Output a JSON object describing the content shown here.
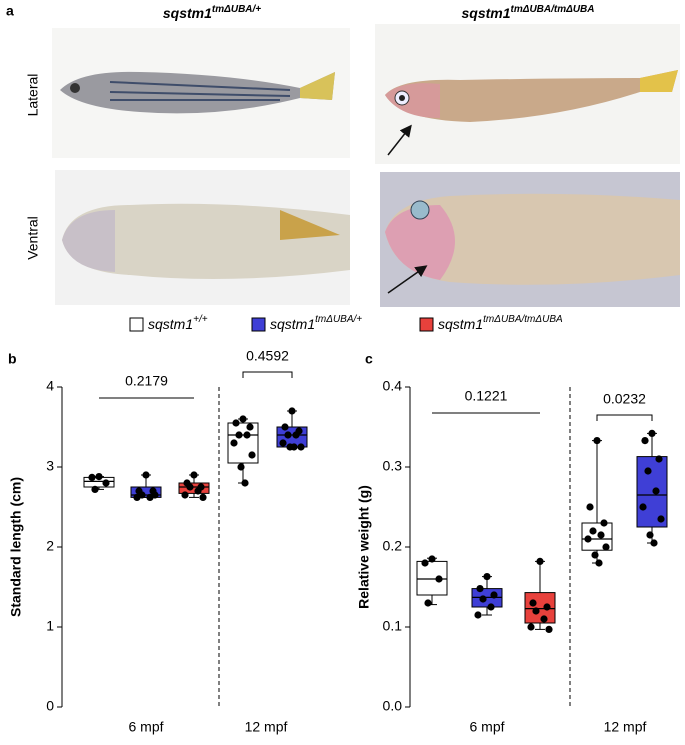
{
  "panel_a": {
    "label": "a",
    "columns": [
      {
        "gene": "sqstm1",
        "genotype": "tmΔUBA/+"
      },
      {
        "gene": "sqstm1",
        "genotype": "tmΔUBA/tmΔUBA"
      }
    ],
    "rows": [
      "Lateral",
      "Ventral"
    ]
  },
  "chart_data": [
    {
      "type": "box",
      "label": "b",
      "y_label": "Standard length (cm)",
      "categories": [
        "6 mpf",
        "12 mpf"
      ],
      "ylim": [
        0,
        4
      ],
      "yticks": [
        0,
        1,
        2,
        3,
        4
      ],
      "annotations": [
        "0.2179",
        "0.4592"
      ],
      "series": [
        {
          "name": "sqstm1",
          "genotype": "+/+",
          "color": "#ffffff",
          "boxes": [
            {
              "min": 2.72,
              "q1": 2.75,
              "median": 2.82,
              "q3": 2.87,
              "max": 2.88,
              "points": [
                2.88,
                2.87,
                2.8,
                2.72
              ]
            },
            {
              "min": 2.8,
              "q1": 3.05,
              "median": 3.4,
              "q3": 3.55,
              "max": 3.6,
              "points": [
                3.6,
                3.55,
                3.5,
                3.4,
                3.4,
                3.3,
                3.15,
                3.0,
                2.8
              ]
            }
          ]
        },
        {
          "name": "sqstm1",
          "genotype": "tmΔUBA/+",
          "color": "#3f3fd6",
          "boxes": [
            {
              "min": 2.62,
              "q1": 2.62,
              "median": 2.65,
              "q3": 2.75,
              "max": 2.9,
              "points": [
                2.9,
                2.7,
                2.7,
                2.65,
                2.62,
                2.62,
                2.65
              ]
            },
            {
              "min": 3.25,
              "q1": 3.25,
              "median": 3.4,
              "q3": 3.5,
              "max": 3.7,
              "points": [
                3.7,
                3.5,
                3.45,
                3.4,
                3.4,
                3.3,
                3.25,
                3.25,
                3.25
              ]
            }
          ]
        },
        {
          "name": "sqstm1",
          "genotype": "tmΔUBA/tmΔUBA",
          "color": "#e8413c",
          "boxes": [
            {
              "min": 2.62,
              "q1": 2.67,
              "median": 2.75,
              "q3": 2.8,
              "max": 2.9,
              "points": [
                2.9,
                2.8,
                2.75,
                2.75,
                2.7,
                2.65,
                2.62
              ]
            },
            null
          ]
        }
      ]
    },
    {
      "type": "box",
      "label": "c",
      "y_label": "Relative weight (g)",
      "categories": [
        "6 mpf",
        "12 mpf"
      ],
      "ylim": [
        0,
        0.4
      ],
      "yticks": [
        {
          "value": 0,
          "label": "0.0"
        },
        0.1,
        0.2,
        0.3,
        0.4
      ],
      "annotations": [
        "0.1221",
        "0.0232"
      ],
      "series": [
        {
          "name": "sqstm1",
          "genotype": "+/+",
          "color": "#ffffff",
          "boxes": [
            {
              "min": 0.128,
              "q1": 0.14,
              "median": 0.16,
              "q3": 0.182,
              "max": 0.186,
              "points": [
                0.185,
                0.18,
                0.16,
                0.13
              ]
            },
            {
              "min": 0.18,
              "q1": 0.196,
              "median": 0.21,
              "q3": 0.23,
              "max": 0.333,
              "points": [
                0.333,
                0.25,
                0.23,
                0.22,
                0.215,
                0.21,
                0.2,
                0.19,
                0.18
              ]
            }
          ]
        },
        {
          "name": "sqstm1",
          "genotype": "tmΔUBA/+",
          "color": "#3f3fd6",
          "boxes": [
            {
              "min": 0.115,
              "q1": 0.125,
              "median": 0.137,
              "q3": 0.148,
              "max": 0.163,
              "points": [
                0.163,
                0.148,
                0.14,
                0.135,
                0.125,
                0.115
              ]
            },
            {
              "min": 0.205,
              "q1": 0.225,
              "median": 0.265,
              "q3": 0.313,
              "max": 0.342,
              "points": [
                0.342,
                0.333,
                0.31,
                0.295,
                0.27,
                0.25,
                0.235,
                0.215,
                0.205
              ]
            }
          ]
        },
        {
          "name": "sqstm1",
          "genotype": "tmΔUBA/tmΔUBA",
          "color": "#e8413c",
          "boxes": [
            {
              "min": 0.097,
              "q1": 0.105,
              "median": 0.123,
              "q3": 0.143,
              "max": 0.182,
              "points": [
                0.182,
                0.13,
                0.125,
                0.12,
                0.11,
                0.1,
                0.097
              ]
            },
            null
          ]
        }
      ]
    }
  ]
}
